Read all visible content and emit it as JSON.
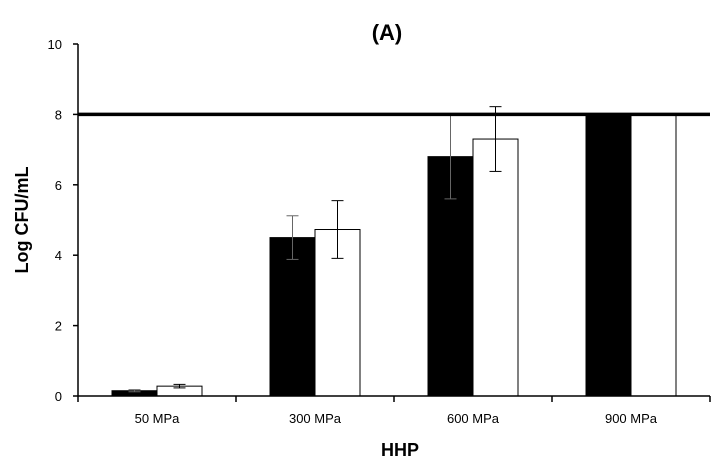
{
  "chart_data": {
    "type": "bar",
    "title": "(A)",
    "xlabel": "HHP",
    "ylabel": "Log CFU/mL",
    "categories": [
      "50 MPa",
      "300 MPa",
      "600 MPa",
      "900 MPa"
    ],
    "series": [
      {
        "fill": "#000000",
        "values": [
          0.15,
          4.5,
          6.8,
          8.0
        ],
        "error": [
          0.03,
          0.62,
          1.2,
          0.0
        ]
      },
      {
        "fill": "#ffffff",
        "values": [
          0.28,
          4.73,
          7.3,
          8.0
        ],
        "error": [
          0.05,
          0.82,
          0.92,
          0.0
        ]
      }
    ],
    "reference_line": 8,
    "ylim": [
      0,
      10
    ],
    "yticks": [
      "0",
      "2",
      "4",
      "6",
      "8",
      "10"
    ],
    "grid": false,
    "legend": "none"
  }
}
